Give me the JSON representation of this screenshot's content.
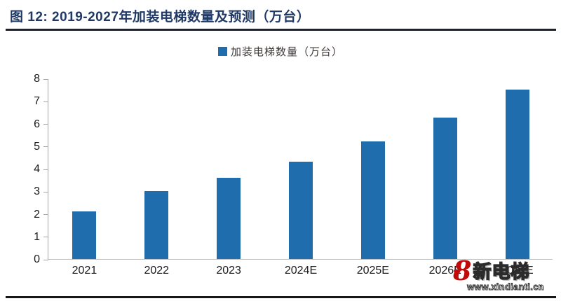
{
  "figure": {
    "title": "图 12: 2019-2027年加装电梯数量及预测（万台）"
  },
  "legend": {
    "label": "加装电梯数量（万台）",
    "marker_color": "#1F6DAD"
  },
  "chart_data": {
    "type": "bar",
    "title": "2019-2027年加装电梯数量及预测（万台）",
    "categories": [
      "2021",
      "2022",
      "2023",
      "2024E",
      "2025E",
      "2026E",
      "2027E"
    ],
    "series": [
      {
        "name": "加装电梯数量（万台）",
        "values": [
          2.1,
          3.0,
          3.6,
          4.3,
          5.2,
          6.25,
          7.5
        ]
      }
    ],
    "xlabel": "",
    "ylabel": "",
    "ylim": [
      0,
      8
    ],
    "ytick_step": 1,
    "grid": false,
    "legend_position": "top",
    "bar_color": "#1F6DAD",
    "axis_color": "#a6a6a6"
  },
  "watermark": {
    "logo_mark": "8",
    "logo_heart": "♥",
    "logo_text": "新电梯",
    "logo_url": "www.xindianti.cn",
    "logo_color": "#c00a0a"
  }
}
